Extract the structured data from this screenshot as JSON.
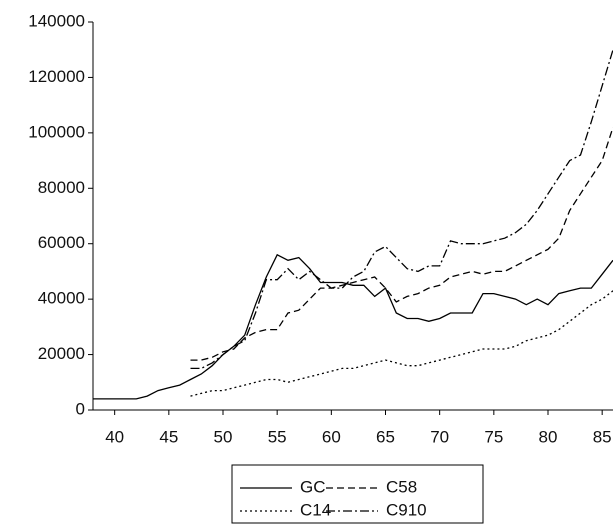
{
  "chart_data": {
    "type": "line",
    "x": [
      38,
      39,
      40,
      41,
      42,
      43,
      44,
      45,
      46,
      47,
      48,
      49,
      50,
      51,
      52,
      53,
      54,
      55,
      56,
      57,
      58,
      59,
      60,
      61,
      62,
      63,
      64,
      65,
      66,
      67,
      68,
      69,
      70,
      71,
      72,
      73,
      74,
      75,
      76,
      77,
      78,
      79,
      80,
      81,
      82,
      83,
      84,
      85,
      86
    ],
    "series": [
      {
        "name": "GC",
        "color": "#000000",
        "style": "solid",
        "values": [
          4000,
          4000,
          4000,
          4000,
          4000,
          5000,
          7000,
          8000,
          9000,
          11000,
          13000,
          16000,
          20000,
          23000,
          27000,
          38000,
          48000,
          56000,
          54000,
          55000,
          51000,
          46000,
          46000,
          46000,
          45000,
          45000,
          41000,
          44000,
          35000,
          33000,
          33000,
          32000,
          33000,
          35000,
          35000,
          35000,
          42000,
          42000,
          41000,
          40000,
          38000,
          40000,
          38000,
          42000,
          43000,
          44000,
          44000,
          49000,
          54000
        ]
      },
      {
        "name": "C58",
        "color": "#000000",
        "style": "dashed",
        "values": [
          null,
          null,
          null,
          null,
          null,
          null,
          null,
          null,
          null,
          18000,
          18000,
          19000,
          21000,
          22000,
          26000,
          28000,
          29000,
          29000,
          35000,
          36000,
          40000,
          44000,
          44000,
          45000,
          46000,
          47000,
          48000,
          44000,
          39000,
          41000,
          42000,
          44000,
          45000,
          48000,
          49000,
          50000,
          49000,
          50000,
          50000,
          52000,
          54000,
          56000,
          58000,
          62000,
          72000,
          78000,
          84000,
          90000,
          102000
        ]
      },
      {
        "name": "C14",
        "color": "#000000",
        "style": "dotted",
        "values": [
          null,
          null,
          null,
          null,
          null,
          null,
          null,
          null,
          null,
          5000,
          6000,
          7000,
          7000,
          8000,
          9000,
          10000,
          11000,
          11000,
          10000,
          11000,
          12000,
          13000,
          14000,
          15000,
          15000,
          16000,
          17000,
          18000,
          17000,
          16000,
          16000,
          17000,
          18000,
          19000,
          20000,
          21000,
          22000,
          22000,
          22000,
          23000,
          25000,
          26000,
          27000,
          29000,
          32000,
          35000,
          38000,
          40000,
          43000
        ]
      },
      {
        "name": "C910",
        "color": "#000000",
        "style": "dashdot",
        "values": [
          null,
          null,
          null,
          null,
          null,
          null,
          null,
          null,
          null,
          15000,
          15000,
          17000,
          20000,
          23000,
          25000,
          35000,
          47000,
          47000,
          51000,
          47000,
          50000,
          47000,
          44000,
          44000,
          48000,
          50000,
          57000,
          59000,
          55000,
          51000,
          50000,
          52000,
          52000,
          61000,
          60000,
          60000,
          60000,
          61000,
          62000,
          64000,
          67000,
          72000,
          78000,
          84000,
          90000,
          92000,
          104000,
          117000,
          130000
        ]
      }
    ],
    "xlim": [
      38,
      86
    ],
    "xticks": [
      40,
      45,
      50,
      55,
      60,
      65,
      70,
      75,
      80,
      85
    ],
    "ylim": [
      0,
      140000
    ],
    "yticks": [
      0,
      20000,
      40000,
      60000,
      80000,
      100000,
      120000,
      140000
    ],
    "grid": false,
    "legend": "bottom"
  }
}
